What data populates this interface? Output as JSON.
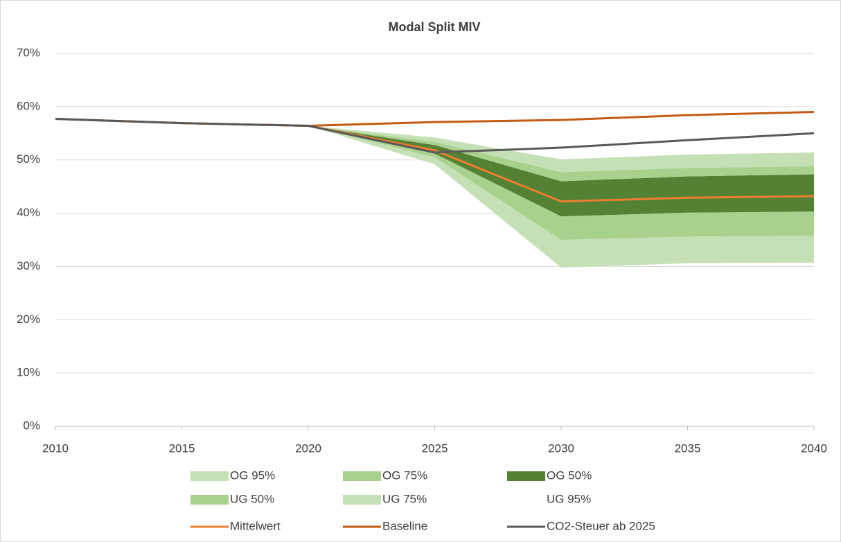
{
  "chart_data": {
    "type": "area",
    "title": "Modal Split MIV",
    "x": [
      2010,
      2015,
      2020,
      2025,
      2030,
      2035,
      2040
    ],
    "xlim": [
      2010,
      2040
    ],
    "xticks": [
      2010,
      2015,
      2020,
      2025,
      2030,
      2035,
      2040
    ],
    "ylim": [
      0,
      70
    ],
    "yticks": [
      {
        "value": 0,
        "label": "0%"
      },
      {
        "value": 10,
        "label": "10%"
      },
      {
        "value": 20,
        "label": "20%"
      },
      {
        "value": 30,
        "label": "30%"
      },
      {
        "value": 40,
        "label": "40%"
      },
      {
        "value": 50,
        "label": "50%"
      },
      {
        "value": 60,
        "label": "60%"
      },
      {
        "value": 70,
        "label": "70%"
      }
    ],
    "grid": true,
    "stacked": true,
    "series": [
      {
        "name": "UG 95%",
        "type": "area",
        "color": "none",
        "values": [
          null,
          null,
          56.4,
          49.2,
          29.8,
          30.6,
          30.7
        ]
      },
      {
        "name": "UG 75%",
        "type": "area",
        "color": "#c5e0b4",
        "values": [
          null,
          null,
          0,
          1.3,
          5.2,
          5.0,
          5.1
        ]
      },
      {
        "name": "UG 50%",
        "type": "area",
        "color": "#a9d18e",
        "values": [
          null,
          null,
          0,
          0.7,
          4.4,
          4.5,
          4.5
        ]
      },
      {
        "name": "OG 50%",
        "type": "area",
        "color": "#548235",
        "values": [
          null,
          null,
          0,
          1.6,
          6.6,
          6.8,
          7.0
        ]
      },
      {
        "name": "OG 75%",
        "type": "area",
        "color": "#a9d18e",
        "values": [
          null,
          null,
          0,
          0.6,
          1.7,
          1.6,
          1.5
        ]
      },
      {
        "name": "OG 95%",
        "type": "area",
        "color": "#c5e0b4",
        "values": [
          null,
          null,
          0,
          0.8,
          2.4,
          2.5,
          2.6
        ]
      },
      {
        "name": "Mittelwert",
        "type": "line",
        "color": "#ed7d31",
        "values": [
          57.7,
          56.9,
          56.4,
          51.8,
          42.2,
          42.9,
          43.2
        ]
      },
      {
        "name": "Baseline",
        "type": "line",
        "color": "#c55a11",
        "values": [
          57.7,
          56.9,
          56.4,
          57.1,
          57.5,
          58.4,
          59.0
        ]
      },
      {
        "name": "CO2-Steuer ab 2025",
        "type": "line",
        "color": "#595959",
        "values": [
          57.7,
          56.9,
          56.4,
          51.4,
          52.3,
          53.7,
          55.0
        ]
      }
    ]
  }
}
